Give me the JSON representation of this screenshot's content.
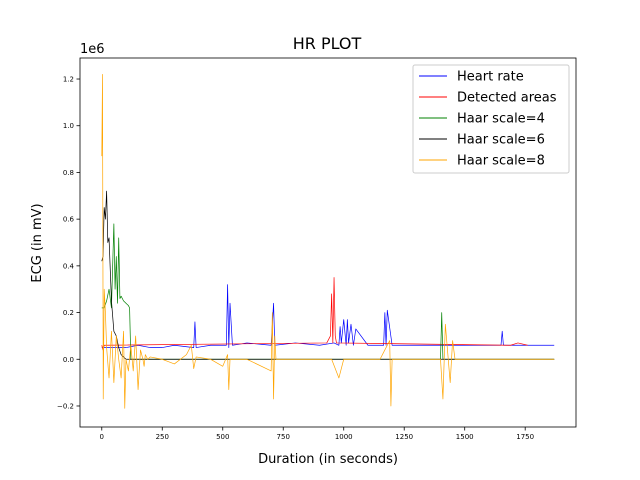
{
  "chart_data": {
    "type": "line",
    "title": "HR PLOT",
    "xlabel": "Duration (in seconds)",
    "ylabel": "ECG (in mV)",
    "y_offset_label": "1e6",
    "xlim": [
      -90,
      1960
    ],
    "ylim": [
      -0.29,
      1.29
    ],
    "x_ticks": [
      0,
      250,
      500,
      750,
      1000,
      1250,
      1500,
      1750
    ],
    "x_tick_labels": [
      "0",
      "250",
      "500",
      "750",
      "1000",
      "1250",
      "1500",
      "1750"
    ],
    "y_ticks": [
      -0.2,
      0.0,
      0.2,
      0.4,
      0.6,
      0.8,
      1.0,
      1.2
    ],
    "y_tick_labels": [
      "−0.2",
      "0.0",
      "0.2",
      "0.4",
      "0.6",
      "0.8",
      "1.0",
      "1.2"
    ],
    "grid": false,
    "legend_position": "top-right",
    "series": [
      {
        "name": "Heart rate",
        "color": "#0000ff",
        "x": [
          0,
          50,
          100,
          150,
          200,
          250,
          300,
          380,
          385,
          390,
          450,
          515,
          520,
          525,
          530,
          540,
          600,
          700,
          710,
          715,
          800,
          900,
          960,
          980,
          985,
          990,
          1000,
          1010,
          1015,
          1020,
          1030,
          1040,
          1050,
          1100,
          1165,
          1170,
          1175,
          1180,
          1200,
          1300,
          1400,
          1500,
          1600,
          1650,
          1655,
          1660,
          1700,
          1800,
          1870
        ],
        "y": [
          0.05,
          0.05,
          0.05,
          0.06,
          0.05,
          0.05,
          0.06,
          0.05,
          0.16,
          0.05,
          0.06,
          0.06,
          0.32,
          0.05,
          0.24,
          0.06,
          0.07,
          0.06,
          0.24,
          0.06,
          0.07,
          0.06,
          0.07,
          0.06,
          0.14,
          0.07,
          0.17,
          0.06,
          0.17,
          0.07,
          0.15,
          0.06,
          0.13,
          0.06,
          0.06,
          0.2,
          0.06,
          0.21,
          0.06,
          0.06,
          0.06,
          0.06,
          0.06,
          0.06,
          0.12,
          0.06,
          0.06,
          0.06,
          0.06
        ]
      },
      {
        "name": "Detected areas",
        "color": "#ff0000",
        "x": [
          0,
          5,
          10,
          930,
          945,
          950,
          955,
          960,
          965,
          970,
          1690,
          1720,
          1760
        ],
        "y": [
          0.06,
          0.04,
          0.06,
          0.07,
          0.1,
          0.28,
          0.07,
          0.35,
          0.1,
          0.07,
          0.06,
          0.07,
          0.06
        ]
      },
      {
        "name": "Haar scale=4",
        "color": "#008000",
        "x": [
          0,
          10,
          20,
          30,
          40,
          50,
          55,
          60,
          65,
          70,
          75,
          80,
          90,
          100,
          110,
          115,
          120,
          130,
          200,
          300,
          400,
          500,
          600,
          700,
          800,
          900,
          1000,
          1100,
          1200,
          1300,
          1400,
          1405,
          1410,
          1500,
          1600,
          1700,
          1800,
          1870
        ],
        "y": [
          0.22,
          0.22,
          0.25,
          0.3,
          0.22,
          0.58,
          0.3,
          0.44,
          0.24,
          0.52,
          0.26,
          0.27,
          0.25,
          0.24,
          0.23,
          0.22,
          0.0,
          0.0,
          0.0,
          0.0,
          0.0,
          0.0,
          0.0,
          0.0,
          0.0,
          0.0,
          0.0,
          0.0,
          0.0,
          0.0,
          0.0,
          0.2,
          0.0,
          0.0,
          0.0,
          0.0,
          0.0,
          0.0
        ]
      },
      {
        "name": "Haar scale=6",
        "color": "#000000",
        "x": [
          0,
          5,
          10,
          15,
          20,
          25,
          30,
          40,
          50,
          60,
          70,
          80,
          90,
          100,
          150,
          200,
          300,
          400,
          500,
          600,
          700,
          800,
          900,
          1000,
          1100,
          1200,
          1300,
          1400,
          1500,
          1600,
          1700,
          1800,
          1870
        ],
        "y": [
          0.42,
          0.44,
          0.65,
          0.6,
          0.72,
          0.5,
          0.52,
          0.25,
          0.12,
          0.1,
          0.05,
          0.02,
          0.01,
          0.0,
          0.0,
          0.0,
          0.0,
          0.0,
          0.0,
          0.0,
          0.0,
          0.0,
          0.0,
          0.0,
          0.0,
          0.0,
          0.0,
          0.0,
          0.0,
          0.0,
          0.0,
          0.0,
          0.0
        ]
      },
      {
        "name": "Haar scale=8",
        "color": "#ffa500",
        "x": [
          0,
          3,
          6,
          10,
          15,
          20,
          30,
          40,
          50,
          60,
          70,
          80,
          90,
          95,
          100,
          110,
          120,
          130,
          140,
          150,
          160,
          170,
          175,
          180,
          190,
          200,
          250,
          300,
          350,
          370,
          380,
          390,
          450,
          500,
          520,
          525,
          530,
          600,
          700,
          705,
          710,
          715,
          720,
          750,
          800,
          850,
          900,
          950,
          980,
          1000,
          1050,
          1100,
          1150,
          1190,
          1195,
          1200,
          1300,
          1400,
          1410,
          1420,
          1440,
          1450,
          1460,
          1500,
          1550,
          1600,
          1650,
          1700,
          1750,
          1800,
          1870
        ],
        "y": [
          0.87,
          1.22,
          -0.17,
          0.3,
          0.2,
          0.05,
          -0.08,
          0.12,
          -0.1,
          0.1,
          0.0,
          -0.08,
          0.12,
          -0.21,
          0.0,
          -0.05,
          0.06,
          -0.05,
          0.1,
          -0.13,
          0.04,
          0.0,
          -0.03,
          0.02,
          0.0,
          0.01,
          0.0,
          -0.02,
          0.02,
          0.06,
          -0.04,
          0.01,
          0.0,
          -0.03,
          0.02,
          -0.13,
          0.0,
          0.0,
          -0.05,
          0.2,
          -0.17,
          0.1,
          0.0,
          0.0,
          0.0,
          0.0,
          0.0,
          0.0,
          -0.08,
          0.0,
          0.0,
          0.0,
          0.0,
          0.08,
          -0.2,
          0.0,
          0.0,
          0.0,
          -0.17,
          0.15,
          -0.1,
          0.08,
          0.0,
          0.0,
          0.0,
          0.0,
          0.0,
          0.0,
          0.0,
          0.0,
          0.0
        ]
      }
    ]
  }
}
